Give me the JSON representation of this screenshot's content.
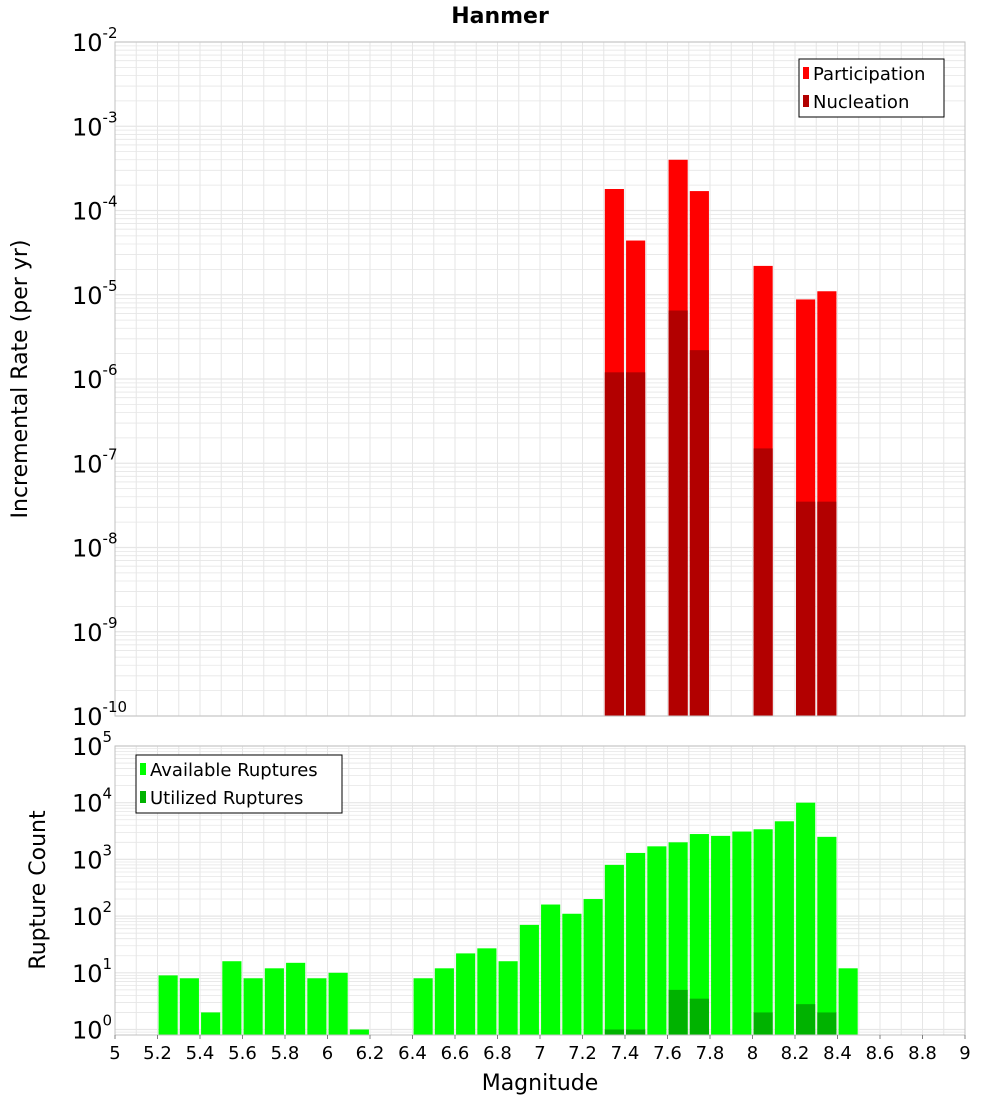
{
  "title": "Hanmer",
  "xlabel": "Magnitude",
  "colors": {
    "participation": "#ff0000",
    "nucleation": "#b20000",
    "available": "#00ff00",
    "utilized": "#00b200",
    "grid": "#e6e6e6",
    "frame": "#c0c0c0"
  },
  "chart_data": [
    {
      "type": "bar",
      "name": "rates",
      "ylabel": "Incremental Rate (per yr)",
      "yscale": "log",
      "ylim": [
        1e-10,
        0.01
      ],
      "xlim": [
        5,
        9
      ],
      "bin_width": 0.1,
      "y_ticks": [
        {
          "base": "10",
          "exp": "-2",
          "v": 0.01
        },
        {
          "base": "10",
          "exp": "-3",
          "v": 0.001
        },
        {
          "base": "10",
          "exp": "-4",
          "v": 0.0001
        },
        {
          "base": "10",
          "exp": "-5",
          "v": 1e-05
        },
        {
          "base": "10",
          "exp": "-6",
          "v": 1e-06
        },
        {
          "base": "10",
          "exp": "-7",
          "v": 1e-07
        },
        {
          "base": "10",
          "exp": "-8",
          "v": 1e-08
        },
        {
          "base": "10",
          "exp": "-9",
          "v": 1e-09
        },
        {
          "base": "10",
          "exp": "-10",
          "v": 1e-10
        }
      ],
      "legend": {
        "position": "top-right",
        "items": [
          "Participation",
          "Nucleation"
        ]
      },
      "series": [
        {
          "name": "Participation",
          "x": [
            7.35,
            7.45,
            7.65,
            7.75,
            8.05,
            8.25,
            8.35
          ],
          "values": [
            0.00018,
            4.4e-05,
            0.0004,
            0.00017,
            2.2e-05,
            8.8e-06,
            1.1e-05
          ]
        },
        {
          "name": "Nucleation",
          "x": [
            7.35,
            7.45,
            7.65,
            7.75,
            8.05,
            8.25,
            8.35
          ],
          "values": [
            1.2e-06,
            1.2e-06,
            6.5e-06,
            2.2e-06,
            1.5e-07,
            3.5e-08,
            3.5e-08
          ]
        }
      ]
    },
    {
      "type": "bar",
      "name": "counts",
      "ylabel": "Rupture Count",
      "yscale": "log",
      "ylim": [
        0.8,
        100000
      ],
      "xlim": [
        5,
        9
      ],
      "bin_width": 0.1,
      "y_ticks": [
        {
          "base": "10",
          "exp": "5",
          "v": 100000
        },
        {
          "base": "10",
          "exp": "4",
          "v": 10000
        },
        {
          "base": "10",
          "exp": "3",
          "v": 1000
        },
        {
          "base": "10",
          "exp": "2",
          "v": 100
        },
        {
          "base": "10",
          "exp": "1",
          "v": 10
        },
        {
          "base": "10",
          "exp": "0",
          "v": 1
        }
      ],
      "x_ticks": [
        "5",
        "5.2",
        "5.4",
        "5.6",
        "5.8",
        "6",
        "6.2",
        "6.4",
        "6.6",
        "6.8",
        "7",
        "7.2",
        "7.4",
        "7.6",
        "7.8",
        "8",
        "8.2",
        "8.4",
        "8.6",
        "8.8",
        "9"
      ],
      "legend": {
        "position": "top-left",
        "items": [
          "Available Ruptures",
          "Utilized Ruptures"
        ]
      },
      "series": [
        {
          "name": "Available Ruptures",
          "x": [
            5.25,
            5.35,
            5.45,
            5.55,
            5.65,
            5.75,
            5.85,
            5.95,
            6.05,
            6.15,
            6.45,
            6.55,
            6.65,
            6.75,
            6.85,
            6.95,
            7.05,
            7.15,
            7.25,
            7.35,
            7.45,
            7.55,
            7.65,
            7.75,
            7.85,
            7.95,
            8.05,
            8.15,
            8.25,
            8.35,
            8.45
          ],
          "values": [
            9,
            8,
            2,
            16,
            8,
            12,
            15,
            8,
            10,
            1,
            8,
            12,
            22,
            27,
            16,
            70,
            160,
            110,
            200,
            800,
            1300,
            1700,
            2000,
            2800,
            2600,
            3100,
            3400,
            4700,
            10000,
            2500,
            12
          ]
        },
        {
          "name": "Utilized Ruptures",
          "x": [
            7.35,
            7.45,
            7.65,
            7.75,
            8.05,
            8.25,
            8.35
          ],
          "values": [
            1,
            1,
            5,
            3.5,
            2,
            2.8,
            2
          ]
        }
      ]
    }
  ]
}
